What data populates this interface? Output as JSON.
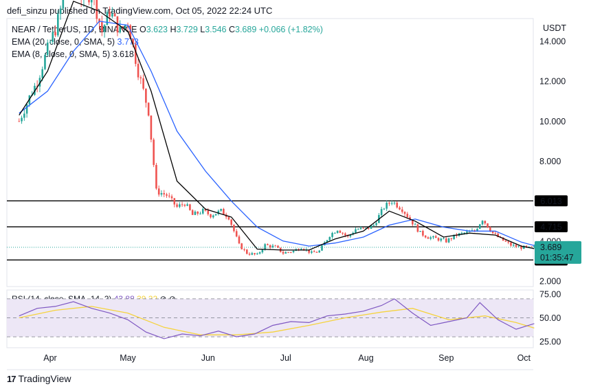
{
  "publisher": "defi_sinzu published on TradingView.com, Oct 05, 2022 22:24 UTC",
  "legend": {
    "symbol": "NEAR / TetherUS, 1D, BINANCE",
    "o_label": "O",
    "o_value": "3.623",
    "h_label": "H",
    "h_value": "3.729",
    "l_label": "L",
    "l_value": "3.546",
    "c_label": "C",
    "c_value": "3.689",
    "change": "+0.066 (+1.82%)",
    "ema20_label": "EMA (20, close, 0, SMA, 5)",
    "ema20_value": "3.773",
    "ema8_label": "EMA (8, close, 0, SMA, 5)",
    "ema8_value": "3.618"
  },
  "rsi_legend": {
    "label": "RSI (14, close, SMA, 14, 2)",
    "rsi_value": "43.88",
    "sma_value": "39.22"
  },
  "brand": "TradingView",
  "colors": {
    "up": "#26a69a",
    "down": "#ef5350",
    "ema20": "#2962ff",
    "ema8": "#000000",
    "rsi": "#7e57c2",
    "rsi_sma": "#f5d33d",
    "rsi_band": "#ede7f6"
  },
  "chart_data": {
    "type": "candlestick",
    "currency": "USDT",
    "y_ticks": [
      "14.000",
      "12.000",
      "10.000",
      "8.000",
      "4.000",
      "2.000"
    ],
    "x_labels": [
      "Apr",
      "May",
      "Jun",
      "Jul",
      "Aug",
      "Sep",
      "Oct"
    ],
    "current_price_label": "3.689",
    "countdown_label": "01:35:47",
    "horizontal_levels": [
      {
        "value": 6.013,
        "label": "6.013"
      },
      {
        "value": 4.715,
        "label": "4.715"
      },
      {
        "value": 3.055,
        "label": "3.055"
      }
    ],
    "rsi": {
      "y_ticks": [
        "75.00",
        "50.00",
        "25.00"
      ],
      "upper_band": 70,
      "middle": 50,
      "lower_band": 30
    },
    "price_path": [
      [
        "2022-03-20",
        10.0
      ],
      [
        "2022-03-24",
        11.2
      ],
      [
        "2022-03-27",
        12.0
      ],
      [
        "2022-03-31",
        13.6
      ],
      [
        "2022-04-03",
        14.6
      ],
      [
        "2022-04-07",
        16.5
      ],
      [
        "2022-04-10",
        17.0
      ],
      [
        "2022-04-14",
        16.0
      ],
      [
        "2022-04-17",
        16.5
      ],
      [
        "2022-04-21",
        14.5
      ],
      [
        "2022-04-24",
        15.5
      ],
      [
        "2022-04-28",
        14.5
      ],
      [
        "2022-05-01",
        15.0
      ],
      [
        "2022-05-05",
        12.5
      ],
      [
        "2022-05-09",
        10.5
      ],
      [
        "2022-05-12",
        6.5
      ],
      [
        "2022-05-16",
        6.3
      ],
      [
        "2022-05-20",
        5.7
      ],
      [
        "2022-05-23",
        5.9
      ],
      [
        "2022-05-26",
        5.3
      ],
      [
        "2022-05-30",
        5.5
      ],
      [
        "2022-06-02",
        5.3
      ],
      [
        "2022-06-06",
        5.5
      ],
      [
        "2022-06-09",
        5.2
      ],
      [
        "2022-06-13",
        3.8
      ],
      [
        "2022-06-16",
        3.4
      ],
      [
        "2022-06-20",
        3.3
      ],
      [
        "2022-06-23",
        3.8
      ],
      [
        "2022-06-27",
        3.7
      ],
      [
        "2022-06-30",
        3.4
      ],
      [
        "2022-07-04",
        3.5
      ],
      [
        "2022-07-07",
        3.7
      ],
      [
        "2022-07-11",
        3.4
      ],
      [
        "2022-07-14",
        3.5
      ],
      [
        "2022-07-18",
        4.3
      ],
      [
        "2022-07-21",
        4.6
      ],
      [
        "2022-07-25",
        4.2
      ],
      [
        "2022-07-28",
        4.6
      ],
      [
        "2022-08-01",
        4.6
      ],
      [
        "2022-08-04",
        4.8
      ],
      [
        "2022-08-08",
        5.7
      ],
      [
        "2022-08-11",
        6.0
      ],
      [
        "2022-08-15",
        5.6
      ],
      [
        "2022-08-18",
        5.1
      ],
      [
        "2022-08-22",
        4.4
      ],
      [
        "2022-08-25",
        4.2
      ],
      [
        "2022-08-29",
        4.1
      ],
      [
        "2022-09-01",
        4.0
      ],
      [
        "2022-09-05",
        4.3
      ],
      [
        "2022-09-08",
        4.4
      ],
      [
        "2022-09-12",
        4.5
      ],
      [
        "2022-09-15",
        5.1
      ],
      [
        "2022-09-19",
        4.4
      ],
      [
        "2022-09-22",
        4.1
      ],
      [
        "2022-09-26",
        3.8
      ],
      [
        "2022-09-29",
        3.7
      ],
      [
        "2022-10-03",
        3.65
      ],
      [
        "2022-10-05",
        3.689
      ]
    ],
    "ema20_path": [
      [
        "2022-03-20",
        10.4
      ],
      [
        "2022-03-31",
        11.5
      ],
      [
        "2022-04-10",
        13.5
      ],
      [
        "2022-04-20",
        15.0
      ],
      [
        "2022-05-01",
        14.8
      ],
      [
        "2022-05-10",
        12.5
      ],
      [
        "2022-05-20",
        9.5
      ],
      [
        "2022-05-31",
        7.5
      ],
      [
        "2022-06-10",
        6.0
      ],
      [
        "2022-06-20",
        4.7
      ],
      [
        "2022-06-30",
        4.0
      ],
      [
        "2022-07-10",
        3.75
      ],
      [
        "2022-07-20",
        3.9
      ],
      [
        "2022-07-31",
        4.2
      ],
      [
        "2022-08-10",
        4.8
      ],
      [
        "2022-08-20",
        5.1
      ],
      [
        "2022-08-31",
        4.7
      ],
      [
        "2022-09-10",
        4.5
      ],
      [
        "2022-09-20",
        4.5
      ],
      [
        "2022-09-30",
        3.95
      ],
      [
        "2022-10-05",
        3.773
      ]
    ],
    "ema8_path": [
      [
        "2022-03-20",
        10.3
      ],
      [
        "2022-03-31",
        12.5
      ],
      [
        "2022-04-10",
        16.0
      ],
      [
        "2022-04-20",
        15.5
      ],
      [
        "2022-05-01",
        14.5
      ],
      [
        "2022-05-10",
        11.5
      ],
      [
        "2022-05-20",
        7.0
      ],
      [
        "2022-05-31",
        5.6
      ],
      [
        "2022-06-10",
        5.2
      ],
      [
        "2022-06-20",
        3.6
      ],
      [
        "2022-06-30",
        3.55
      ],
      [
        "2022-07-10",
        3.55
      ],
      [
        "2022-07-20",
        4.1
      ],
      [
        "2022-07-31",
        4.5
      ],
      [
        "2022-08-10",
        5.5
      ],
      [
        "2022-08-20",
        5.0
      ],
      [
        "2022-08-31",
        4.2
      ],
      [
        "2022-09-10",
        4.4
      ],
      [
        "2022-09-20",
        4.3
      ],
      [
        "2022-09-30",
        3.75
      ],
      [
        "2022-10-05",
        3.618
      ]
    ],
    "rsi_path": [
      [
        "2022-03-20",
        52
      ],
      [
        "2022-03-27",
        60
      ],
      [
        "2022-04-03",
        62
      ],
      [
        "2022-04-10",
        67
      ],
      [
        "2022-04-17",
        60
      ],
      [
        "2022-04-24",
        55
      ],
      [
        "2022-05-01",
        48
      ],
      [
        "2022-05-08",
        35
      ],
      [
        "2022-05-15",
        28
      ],
      [
        "2022-05-22",
        33
      ],
      [
        "2022-05-29",
        31
      ],
      [
        "2022-06-05",
        36
      ],
      [
        "2022-06-12",
        30
      ],
      [
        "2022-06-19",
        33
      ],
      [
        "2022-06-26",
        42
      ],
      [
        "2022-07-03",
        46
      ],
      [
        "2022-07-10",
        45
      ],
      [
        "2022-07-17",
        52
      ],
      [
        "2022-07-24",
        54
      ],
      [
        "2022-07-31",
        57
      ],
      [
        "2022-08-07",
        63
      ],
      [
        "2022-08-12",
        70
      ],
      [
        "2022-08-19",
        55
      ],
      [
        "2022-08-26",
        42
      ],
      [
        "2022-09-02",
        46
      ],
      [
        "2022-09-09",
        50
      ],
      [
        "2022-09-14",
        66
      ],
      [
        "2022-09-21",
        48
      ],
      [
        "2022-09-28",
        38
      ],
      [
        "2022-10-05",
        43.88
      ]
    ],
    "rsi_sma_path": [
      [
        "2022-03-20",
        50
      ],
      [
        "2022-04-03",
        58
      ],
      [
        "2022-04-17",
        62
      ],
      [
        "2022-05-01",
        55
      ],
      [
        "2022-05-15",
        40
      ],
      [
        "2022-05-29",
        32
      ],
      [
        "2022-06-12",
        32
      ],
      [
        "2022-06-26",
        35
      ],
      [
        "2022-07-10",
        42
      ],
      [
        "2022-07-24",
        50
      ],
      [
        "2022-08-07",
        56
      ],
      [
        "2022-08-19",
        60
      ],
      [
        "2022-09-02",
        48
      ],
      [
        "2022-09-16",
        52
      ],
      [
        "2022-09-28",
        45
      ],
      [
        "2022-10-05",
        39.22
      ]
    ]
  }
}
